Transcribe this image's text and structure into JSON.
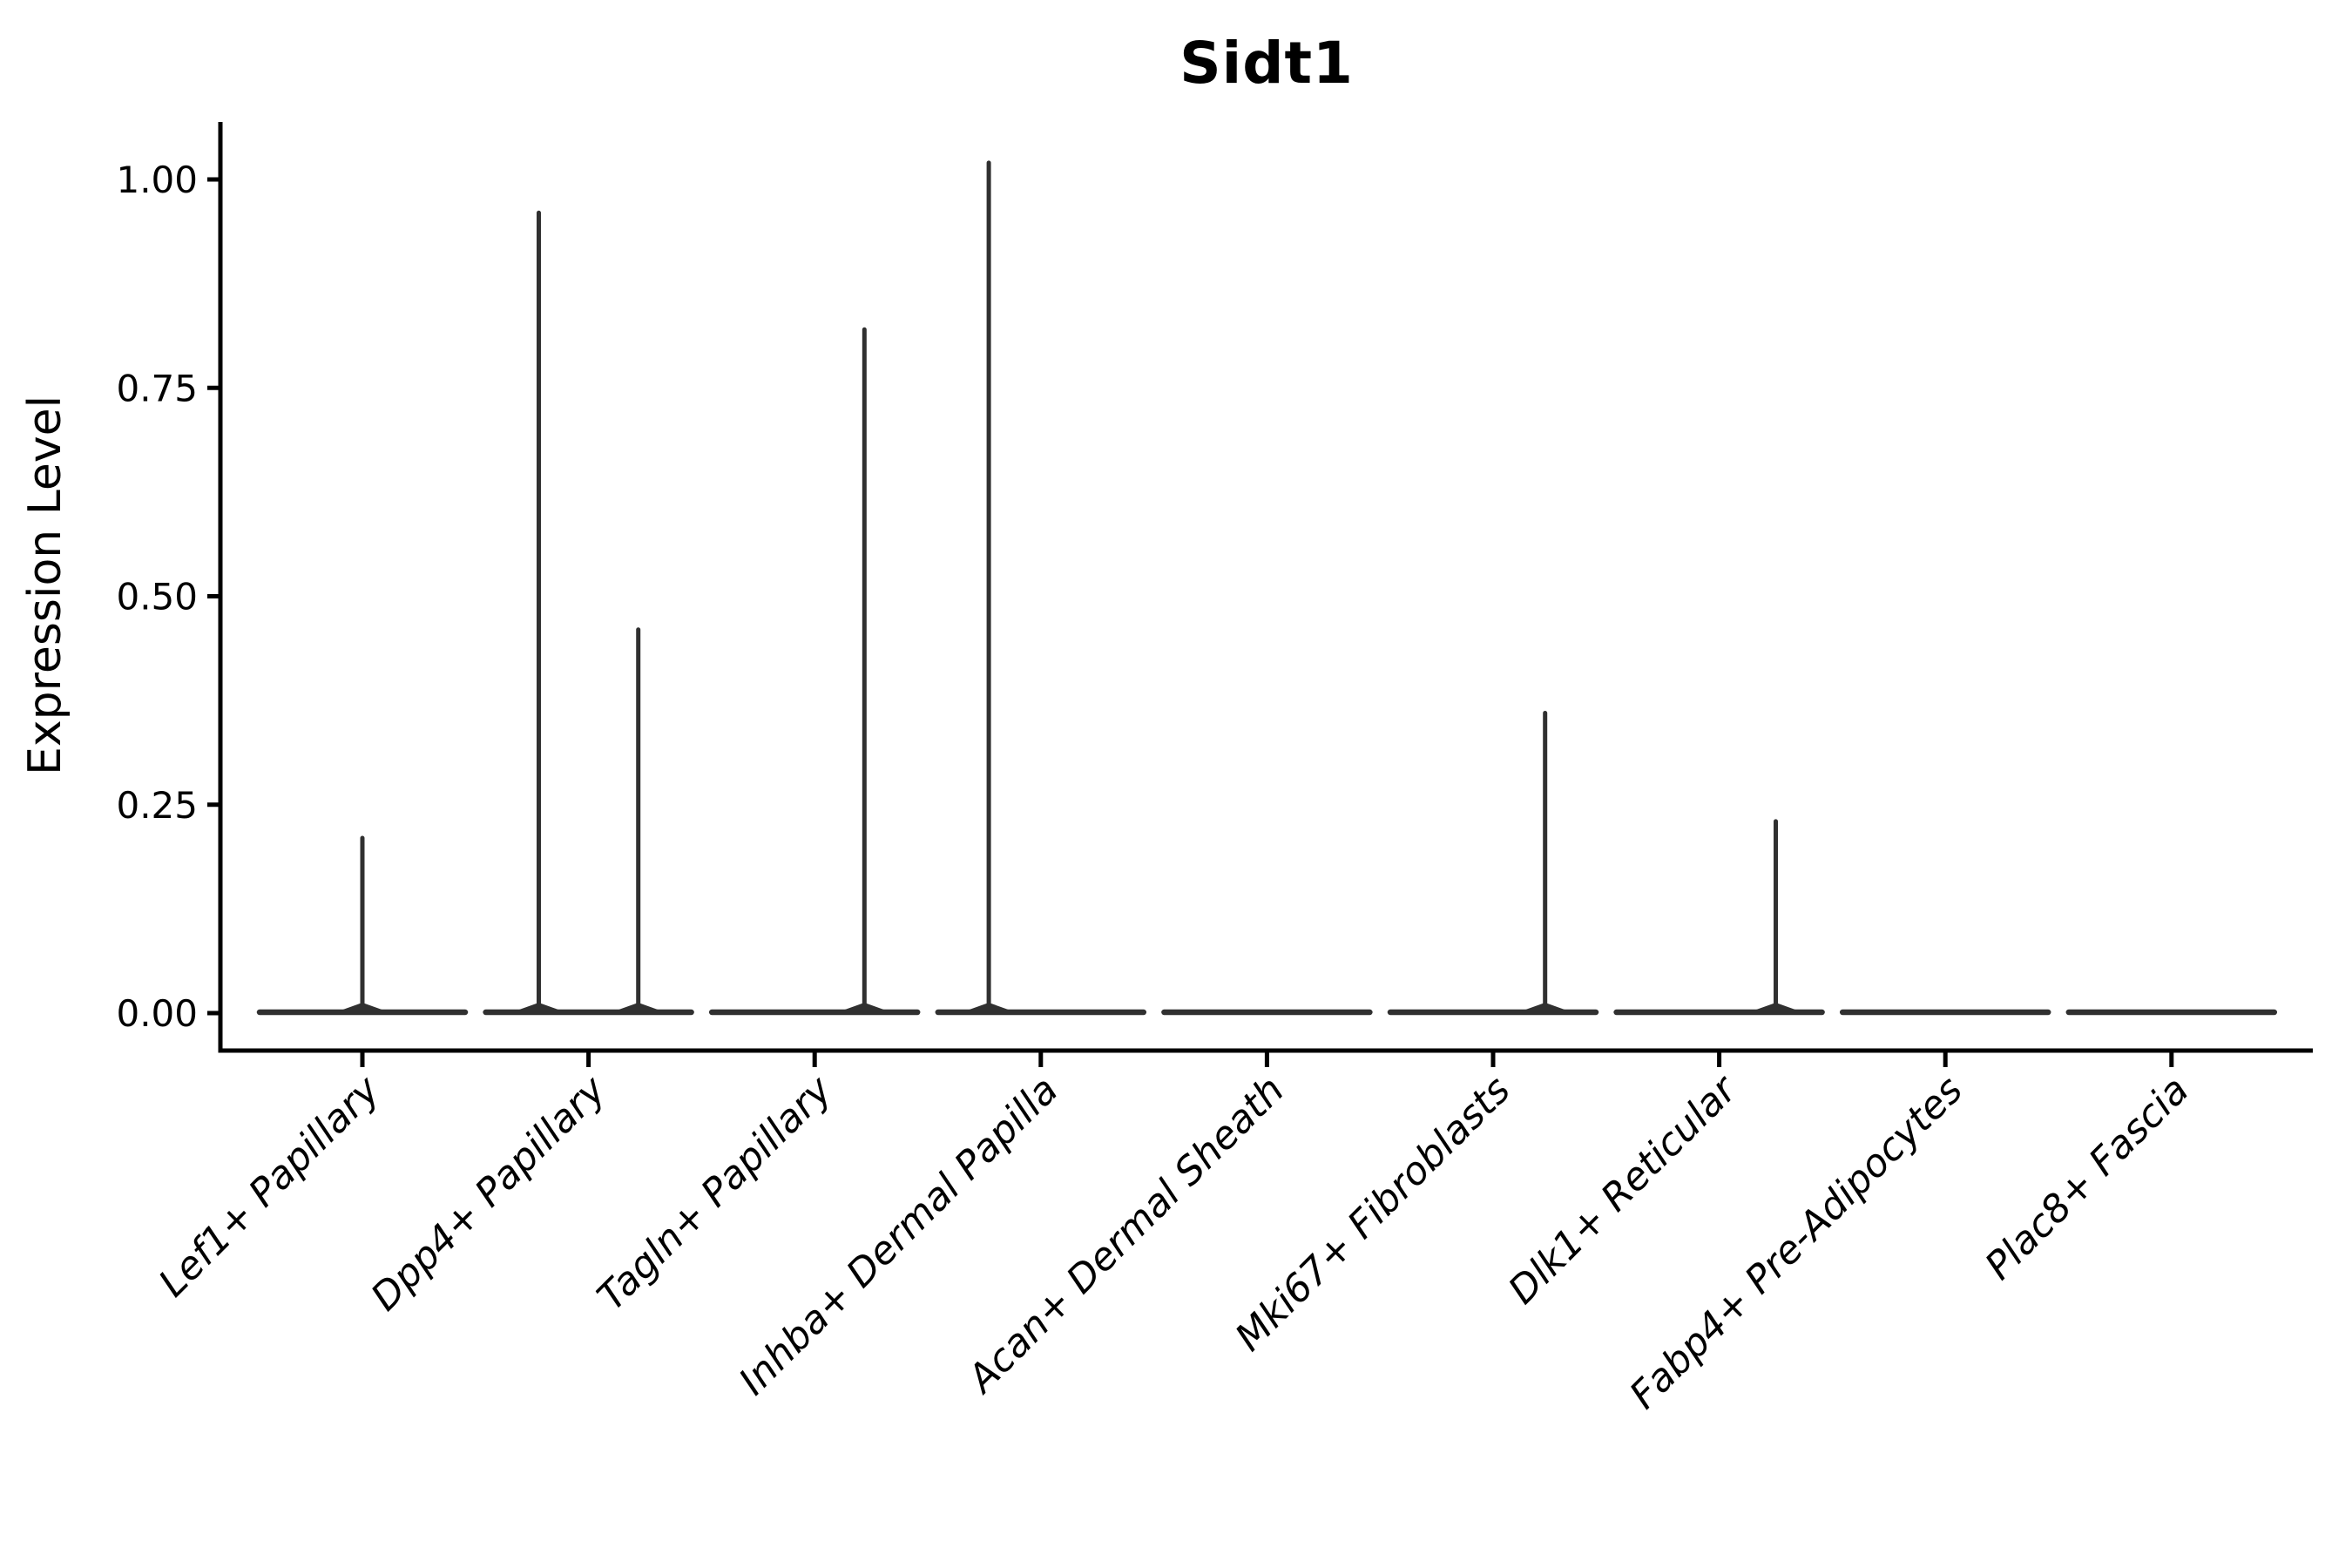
{
  "figure": {
    "title": "Sidt1",
    "y_axis_label": "Expression Level"
  },
  "chart_data": {
    "type": "violin",
    "title": "Sidt1",
    "xlabel": "",
    "ylabel": "Expression Level",
    "ylim": [
      0,
      1.07
    ],
    "grid": false,
    "legend": false,
    "yticks": [
      1.0,
      0.75,
      0.5,
      0.25,
      0.0
    ],
    "ytick_labels": [
      "1.00",
      "0.75",
      "0.50",
      "0.25",
      "0.00"
    ],
    "categories": [
      "Lef1+ Papillary",
      "Dpp4+ Papillary",
      "Tagln+ Papillary",
      "Inhba+ Dermal Papilla",
      "Acan+ Dermal Sheath",
      "Mki67+ Fibroblasts",
      "Dlk1+ Reticular",
      "Fabp4+ Pre-Adipocytes",
      "Plac8+ Fascia"
    ],
    "x_label_rotation_deg": 45,
    "x_labels_italic": true,
    "violins": [
      {
        "category": "Lef1+ Papillary",
        "base_value": 0,
        "spikes": [
          {
            "offset": 0.0,
            "max": 0.21
          }
        ]
      },
      {
        "category": "Dpp4+ Papillary",
        "base_value": 0,
        "spikes": [
          {
            "offset": -0.22,
            "max": 0.96
          },
          {
            "offset": 0.22,
            "max": 0.46
          }
        ]
      },
      {
        "category": "Tagln+ Papillary",
        "base_value": 0,
        "spikes": [
          {
            "offset": 0.22,
            "max": 0.82
          }
        ]
      },
      {
        "category": "Inhba+ Dermal Papilla",
        "base_value": 0,
        "spikes": [
          {
            "offset": -0.23,
            "max": 1.02
          }
        ]
      },
      {
        "category": "Acan+ Dermal Sheath",
        "base_value": 0,
        "spikes": []
      },
      {
        "category": "Mki67+ Fibroblasts",
        "base_value": 0,
        "spikes": [
          {
            "offset": 0.23,
            "max": 0.36
          }
        ]
      },
      {
        "category": "Dlk1+ Reticular",
        "base_value": 0,
        "spikes": [
          {
            "offset": 0.25,
            "max": 0.23
          }
        ]
      },
      {
        "category": "Fabp4+ Pre-Adipocytes",
        "base_value": 0,
        "spikes": []
      },
      {
        "category": "Plac8+ Fascia",
        "base_value": 0,
        "spikes": []
      }
    ],
    "style": {
      "violin_color": "#303030",
      "axis_color": "#000000",
      "background": "#ffffff"
    }
  }
}
